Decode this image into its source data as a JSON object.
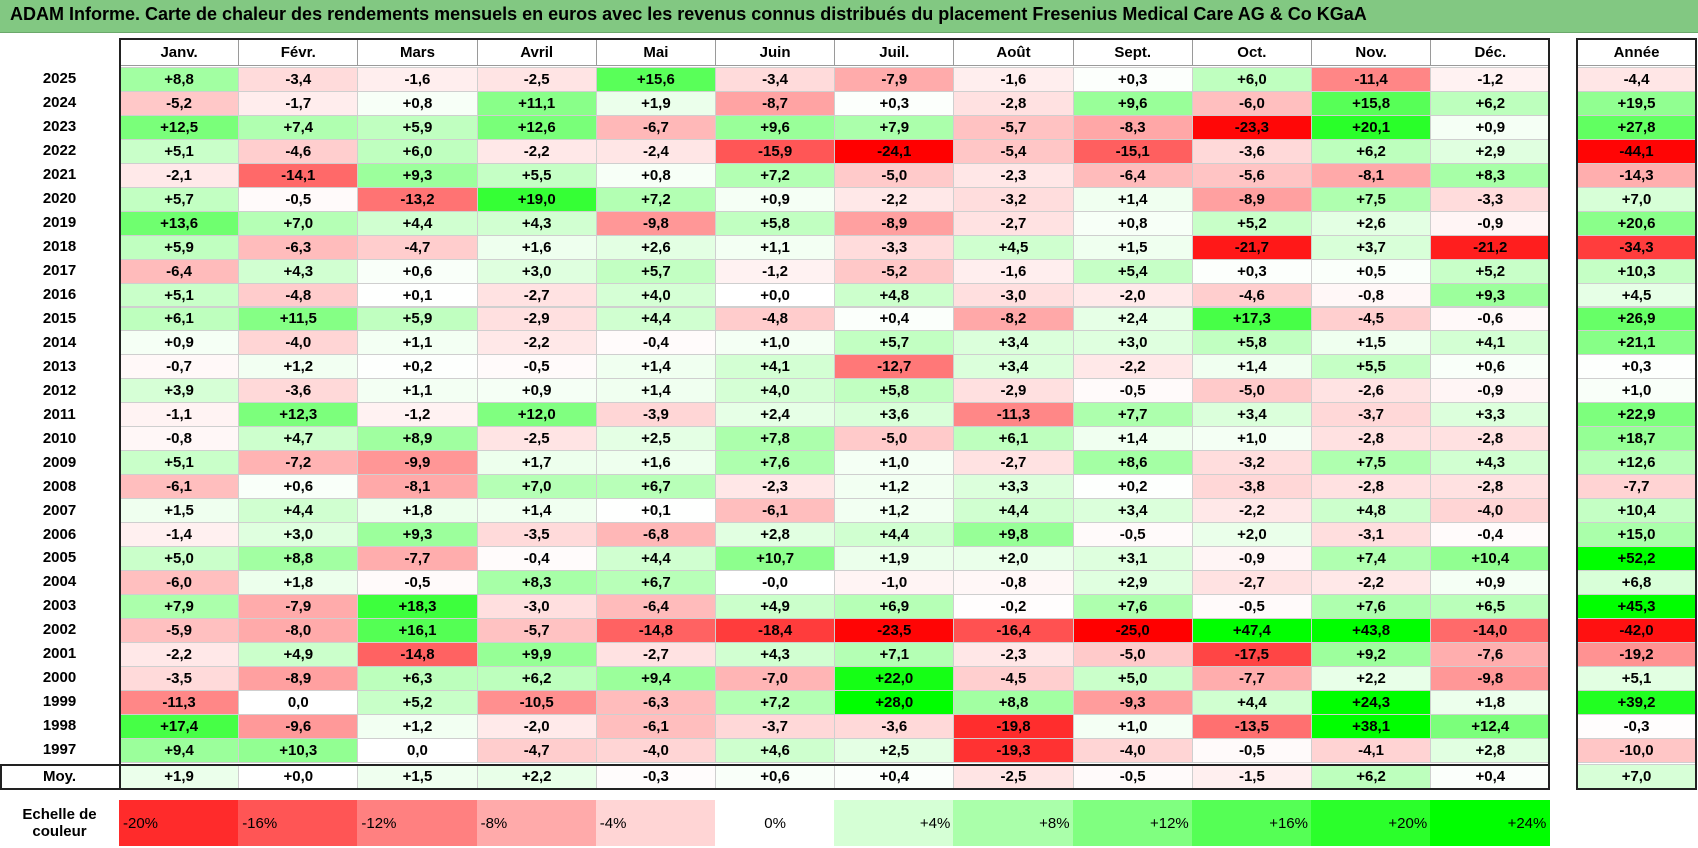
{
  "title": "ADAM Informe. Carte de chaleur des rendements mensuels en euros avec les revenus connus distribués du placement Fresenius Medical Care AG & Co KGaA",
  "chart_data": {
    "type": "heatmap",
    "months": [
      "Janv.",
      "Févr.",
      "Mars",
      "Avril",
      "Mai",
      "Juin",
      "Juil.",
      "Août",
      "Sept.",
      "Oct.",
      "Nov.",
      "Déc."
    ],
    "year_header": "Année",
    "rows": [
      {
        "year": "2025",
        "values": [
          "+8,8",
          "-3,4",
          "-1,6",
          "-2,5",
          "+15,6",
          "-3,4",
          "-7,9",
          "-1,6",
          "+0,3",
          "+6,0",
          "-11,4",
          "-1,2"
        ],
        "annual": "-4,4"
      },
      {
        "year": "2024",
        "values": [
          "-5,2",
          "-1,7",
          "+0,8",
          "+11,1",
          "+1,9",
          "-8,7",
          "+0,3",
          "-2,8",
          "+9,6",
          "-6,0",
          "+15,8",
          "+6,2"
        ],
        "annual": "+19,5"
      },
      {
        "year": "2023",
        "values": [
          "+12,5",
          "+7,4",
          "+5,9",
          "+12,6",
          "-6,7",
          "+9,6",
          "+7,9",
          "-5,7",
          "-8,3",
          "-23,3",
          "+20,1",
          "+0,9"
        ],
        "annual": "+27,8"
      },
      {
        "year": "2022",
        "values": [
          "+5,1",
          "-4,6",
          "+6,0",
          "-2,2",
          "-2,4",
          "-15,9",
          "-24,1",
          "-5,4",
          "-15,1",
          "-3,6",
          "+6,2",
          "+2,9"
        ],
        "annual": "-44,1"
      },
      {
        "year": "2021",
        "values": [
          "-2,1",
          "-14,1",
          "+9,3",
          "+5,5",
          "+0,8",
          "+7,2",
          "-5,0",
          "-2,3",
          "-6,4",
          "-5,6",
          "-8,1",
          "+8,3"
        ],
        "annual": "-14,3"
      },
      {
        "year": "2020",
        "values": [
          "+5,7",
          "-0,5",
          "-13,2",
          "+19,0",
          "+7,2",
          "+0,9",
          "-2,2",
          "-3,2",
          "+1,4",
          "-8,9",
          "+7,5",
          "-3,3"
        ],
        "annual": "+7,0"
      },
      {
        "year": "2019",
        "values": [
          "+13,6",
          "+7,0",
          "+4,4",
          "+4,3",
          "-9,8",
          "+5,8",
          "-8,9",
          "-2,7",
          "+0,8",
          "+5,2",
          "+2,6",
          "-0,9"
        ],
        "annual": "+20,6"
      },
      {
        "year": "2018",
        "values": [
          "+5,9",
          "-6,3",
          "-4,7",
          "+1,6",
          "+2,6",
          "+1,1",
          "-3,3",
          "+4,5",
          "+1,5",
          "-21,7",
          "+3,7",
          "-21,2"
        ],
        "annual": "-34,3"
      },
      {
        "year": "2017",
        "values": [
          "-6,4",
          "+4,3",
          "+0,6",
          "+3,0",
          "+5,7",
          "-1,2",
          "-5,2",
          "-1,6",
          "+5,4",
          "+0,3",
          "+0,5",
          "+5,2"
        ],
        "annual": "+10,3"
      },
      {
        "year": "2016",
        "values": [
          "+5,1",
          "-4,8",
          "+0,1",
          "-2,7",
          "+4,0",
          "+0,0",
          "+4,8",
          "-3,0",
          "-2,0",
          "-4,6",
          "-0,8",
          "+9,3"
        ],
        "annual": "+4,5"
      },
      {
        "year": "2015",
        "values": [
          "+6,1",
          "+11,5",
          "+5,9",
          "-2,9",
          "+4,4",
          "-4,8",
          "+0,4",
          "-8,2",
          "+2,4",
          "+17,3",
          "-4,5",
          "-0,6"
        ],
        "annual": "+26,9"
      },
      {
        "year": "2014",
        "values": [
          "+0,9",
          "-4,0",
          "+1,1",
          "-2,2",
          "-0,4",
          "+1,0",
          "+5,7",
          "+3,4",
          "+3,0",
          "+5,8",
          "+1,5",
          "+4,1"
        ],
        "annual": "+21,1"
      },
      {
        "year": "2013",
        "values": [
          "-0,7",
          "+1,2",
          "+0,2",
          "-0,5",
          "+1,4",
          "+4,1",
          "-12,7",
          "+3,4",
          "-2,2",
          "+1,4",
          "+5,5",
          "+0,6"
        ],
        "annual": "+0,3"
      },
      {
        "year": "2012",
        "values": [
          "+3,9",
          "-3,6",
          "+1,1",
          "+0,9",
          "+1,4",
          "+4,0",
          "+5,8",
          "-2,9",
          "-0,5",
          "-5,0",
          "-2,6",
          "-0,9"
        ],
        "annual": "+1,0"
      },
      {
        "year": "2011",
        "values": [
          "-1,1",
          "+12,3",
          "-1,2",
          "+12,0",
          "-3,9",
          "+2,4",
          "+3,6",
          "-11,3",
          "+7,7",
          "+3,4",
          "-3,7",
          "+3,3"
        ],
        "annual": "+22,9"
      },
      {
        "year": "2010",
        "values": [
          "-0,8",
          "+4,7",
          "+8,9",
          "-2,5",
          "+2,5",
          "+7,8",
          "-5,0",
          "+6,1",
          "+1,4",
          "+1,0",
          "-2,8",
          "-2,8"
        ],
        "annual": "+18,7"
      },
      {
        "year": "2009",
        "values": [
          "+5,1",
          "-7,2",
          "-9,9",
          "+1,7",
          "+1,6",
          "+7,6",
          "+1,0",
          "-2,7",
          "+8,6",
          "-3,2",
          "+7,5",
          "+4,3"
        ],
        "annual": "+12,6"
      },
      {
        "year": "2008",
        "values": [
          "-6,1",
          "+0,6",
          "-8,1",
          "+7,0",
          "+6,7",
          "-2,3",
          "+1,2",
          "+3,3",
          "+0,2",
          "-3,8",
          "-2,8",
          "-2,8"
        ],
        "annual": "-7,7"
      },
      {
        "year": "2007",
        "values": [
          "+1,5",
          "+4,4",
          "+1,8",
          "+1,4",
          "+0,1",
          "-6,1",
          "+1,2",
          "+4,4",
          "+3,4",
          "-2,2",
          "+4,8",
          "-4,0"
        ],
        "annual": "+10,4"
      },
      {
        "year": "2006",
        "values": [
          "-1,4",
          "+3,0",
          "+9,3",
          "-3,5",
          "-6,8",
          "+2,8",
          "+4,4",
          "+9,8",
          "-0,5",
          "+2,0",
          "-3,1",
          "-0,4"
        ],
        "annual": "+15,0"
      },
      {
        "year": "2005",
        "values": [
          "+5,0",
          "+8,8",
          "-7,7",
          "-0,4",
          "+4,4",
          "+10,7",
          "+1,9",
          "+2,0",
          "+3,1",
          "-0,9",
          "+7,4",
          "+10,4"
        ],
        "annual": "+52,2"
      },
      {
        "year": "2004",
        "values": [
          "-6,0",
          "+1,8",
          "-0,5",
          "+8,3",
          "+6,7",
          "-0,0",
          "-1,0",
          "-0,8",
          "+2,9",
          "-2,7",
          "-2,2",
          "+0,9"
        ],
        "annual": "+6,8"
      },
      {
        "year": "2003",
        "values": [
          "+7,9",
          "-7,9",
          "+18,3",
          "-3,0",
          "-6,4",
          "+4,9",
          "+6,9",
          "-0,2",
          "+7,6",
          "-0,5",
          "+7,6",
          "+6,5"
        ],
        "annual": "+45,3"
      },
      {
        "year": "2002",
        "values": [
          "-5,9",
          "-8,0",
          "+16,1",
          "-5,7",
          "-14,8",
          "-18,4",
          "-23,5",
          "-16,4",
          "-25,0",
          "+47,4",
          "+43,8",
          "-14,0"
        ],
        "annual": "-42,0"
      },
      {
        "year": "2001",
        "values": [
          "-2,2",
          "+4,9",
          "-14,8",
          "+9,9",
          "-2,7",
          "+4,3",
          "+7,1",
          "-2,3",
          "-5,0",
          "-17,5",
          "+9,2",
          "-7,6"
        ],
        "annual": "-19,2"
      },
      {
        "year": "2000",
        "values": [
          "-3,5",
          "-8,9",
          "+6,3",
          "+6,2",
          "+9,4",
          "-7,0",
          "+22,0",
          "-4,5",
          "+5,0",
          "-7,7",
          "+2,2",
          "-9,8"
        ],
        "annual": "+5,1"
      },
      {
        "year": "1999",
        "values": [
          "-11,3",
          "0,0",
          "+5,2",
          "-10,5",
          "-6,3",
          "+7,2",
          "+28,0",
          "+8,8",
          "-9,3",
          "+4,4",
          "+24,3",
          "+1,8"
        ],
        "annual": "+39,2"
      },
      {
        "year": "1998",
        "values": [
          "+17,4",
          "-9,6",
          "+1,2",
          "-2,0",
          "-6,1",
          "-3,7",
          "-3,6",
          "-19,8",
          "+1,0",
          "-13,5",
          "+38,1",
          "+12,4"
        ],
        "annual": "-0,3"
      },
      {
        "year": "1997",
        "values": [
          "+9,4",
          "+10,3",
          "0,0",
          "-4,7",
          "-4,0",
          "+4,6",
          "+2,5",
          "-19,3",
          "-4,0",
          "-0,5",
          "-4,1",
          "+2,8"
        ],
        "annual": "-10,0"
      }
    ],
    "average": {
      "label": "Moy.",
      "values": [
        "+1,9",
        "+0,0",
        "+1,5",
        "+2,2",
        "-0,3",
        "+0,6",
        "+0,4",
        "-2,5",
        "-0,5",
        "-1,5",
        "+6,2",
        "+0,4"
      ],
      "annual": "+7,0"
    },
    "scale": {
      "label_line1": "Echelle de",
      "label_line2": "couleur",
      "stops": [
        "-20%",
        "-16%",
        "-12%",
        "-8%",
        "-4%",
        "0%",
        "+4%",
        "+8%",
        "+12%",
        "+16%",
        "+20%",
        "+24%"
      ],
      "levels": [
        -20,
        -16,
        -12,
        -8,
        -4,
        0,
        4,
        8,
        12,
        16,
        20,
        24
      ]
    },
    "colors": {
      "negative": "#ff0000",
      "neutral": "#ffffff",
      "positive": "#00ff00",
      "title_bg": "#82c882"
    }
  }
}
